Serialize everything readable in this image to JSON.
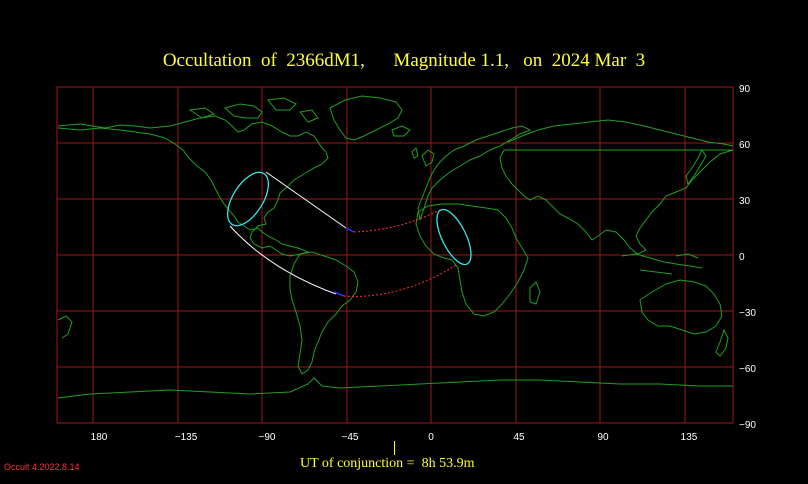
{
  "title": "Occultation  of  2366dM1,      Magnitude 1.1,   on  2024 Mar  3",
  "ut_label": "UT of conjunction =  8h 53.9m",
  "version": "Occult 4.2022.8.14",
  "map": {
    "lon_ticks": [
      "180",
      "−135",
      "−90",
      "−45",
      "0",
      "45",
      "90",
      "135"
    ],
    "lat_ticks": [
      "90",
      "60",
      "30",
      "0",
      "−30",
      "−60",
      "−90"
    ],
    "colors": {
      "background": "#000000",
      "grid": "#a01818",
      "coast": "#1fa01f",
      "path_day": "#ffffff",
      "path_night": "#ff3030",
      "limit_ellipse": "#33e6e6",
      "text": "#ffff33"
    }
  }
}
